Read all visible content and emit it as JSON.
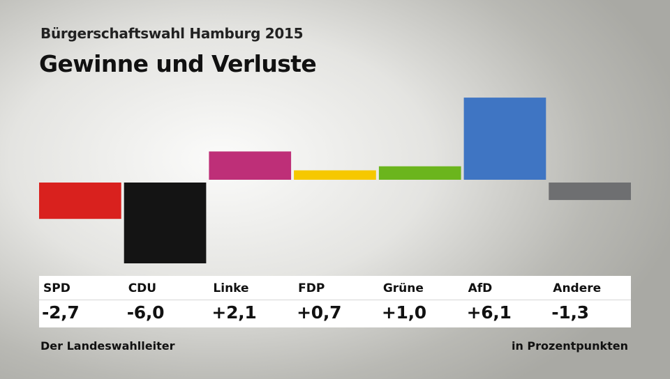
{
  "header": {
    "subtitle": "Bürgerschaftswahl Hamburg 2015",
    "title": "Gewinne und Verluste"
  },
  "footer": {
    "source": "Der Landeswahlleiter",
    "unit": "in Prozentpunkten"
  },
  "chart_data": {
    "type": "bar",
    "title": "Gewinne und Verluste",
    "subtitle": "Bürgerschaftswahl Hamburg 2015",
    "categories": [
      "SPD",
      "CDU",
      "Linke",
      "FDP",
      "Grüne",
      "AfD",
      "Andere"
    ],
    "values": [
      -2.7,
      -6.0,
      2.1,
      0.7,
      1.0,
      6.1,
      -1.3
    ],
    "value_labels": [
      "-2,7",
      "-6,0",
      "+2,1",
      "+0,7",
      "+1,0",
      "+6,1",
      "-1,3"
    ],
    "colors": [
      "#d9211e",
      "#141414",
      "#be2f78",
      "#f6c800",
      "#6bb51d",
      "#3f75c3",
      "#6e6f71"
    ],
    "ylabel": "in Prozentpunkten",
    "ylim": [
      -6.1,
      6.1
    ],
    "grid": false,
    "legend": "none"
  }
}
